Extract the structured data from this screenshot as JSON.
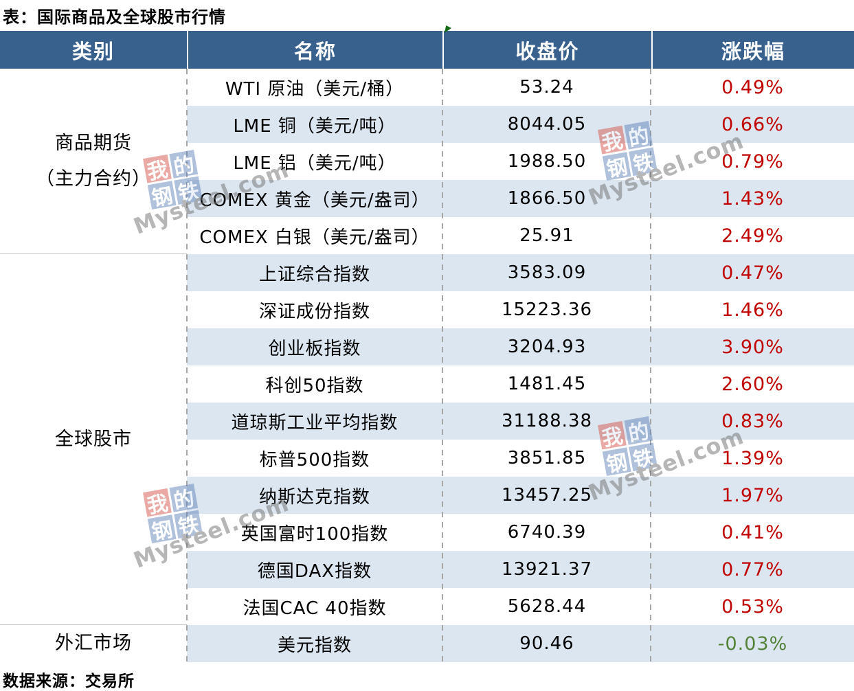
{
  "title": "表：国际商品及全球股市行情",
  "source": "数据来源：交易所",
  "colors": {
    "header_bg": "#38618e",
    "alt_row_bg": "#dce6f1",
    "up_text": "#c00000",
    "down_text": "#538135",
    "bottom_border": "#27598a"
  },
  "watermark": {
    "chars": [
      "我",
      "的",
      "钢",
      "铁"
    ],
    "domain": "Mysteel.com"
  },
  "table": {
    "headers": [
      "类别",
      "名称",
      "收盘价",
      "涨跌幅"
    ],
    "groups": [
      {
        "category": "商品期货\n（主力合约）",
        "rows": [
          {
            "name": "WTI 原油（美元/桶）",
            "close": "53.24",
            "change": "0.49%",
            "direction": "up"
          },
          {
            "name": "LME 铜（美元/吨）",
            "close": "8044.05",
            "change": "0.66%",
            "direction": "up"
          },
          {
            "name": "LME 铝（美元/吨）",
            "close": "1988.50",
            "change": "0.79%",
            "direction": "up"
          },
          {
            "name": "COMEX 黄金（美元/盎司）",
            "close": "1866.50",
            "change": "1.43%",
            "direction": "up"
          },
          {
            "name": "COMEX 白银（美元/盎司）",
            "close": "25.91",
            "change": "2.49%",
            "direction": "up"
          }
        ]
      },
      {
        "category": "全球股市",
        "rows": [
          {
            "name": "上证综合指数",
            "close": "3583.09",
            "change": "0.47%",
            "direction": "up"
          },
          {
            "name": "深证成份指数",
            "close": "15223.36",
            "change": "1.46%",
            "direction": "up"
          },
          {
            "name": "创业板指数",
            "close": "3204.93",
            "change": "3.90%",
            "direction": "up"
          },
          {
            "name": "科创50指数",
            "close": "1481.45",
            "change": "2.60%",
            "direction": "up"
          },
          {
            "name": "道琼斯工业平均指数",
            "close": "31188.38",
            "change": "0.83%",
            "direction": "up"
          },
          {
            "name": "标普500指数",
            "close": "3851.85",
            "change": "1.39%",
            "direction": "up"
          },
          {
            "name": "纳斯达克指数",
            "close": "13457.25",
            "change": "1.97%",
            "direction": "up"
          },
          {
            "name": "英国富时100指数",
            "close": "6740.39",
            "change": "0.41%",
            "direction": "up"
          },
          {
            "name": "德国DAX指数",
            "close": "13921.37",
            "change": "0.77%",
            "direction": "up"
          },
          {
            "name": "法国CAC 40指数",
            "close": "5628.44",
            "change": "0.53%",
            "direction": "up"
          }
        ]
      },
      {
        "category": "外汇市场",
        "rows": [
          {
            "name": "美元指数",
            "close": "90.46",
            "change": "-0.03%",
            "direction": "down"
          }
        ]
      }
    ]
  }
}
